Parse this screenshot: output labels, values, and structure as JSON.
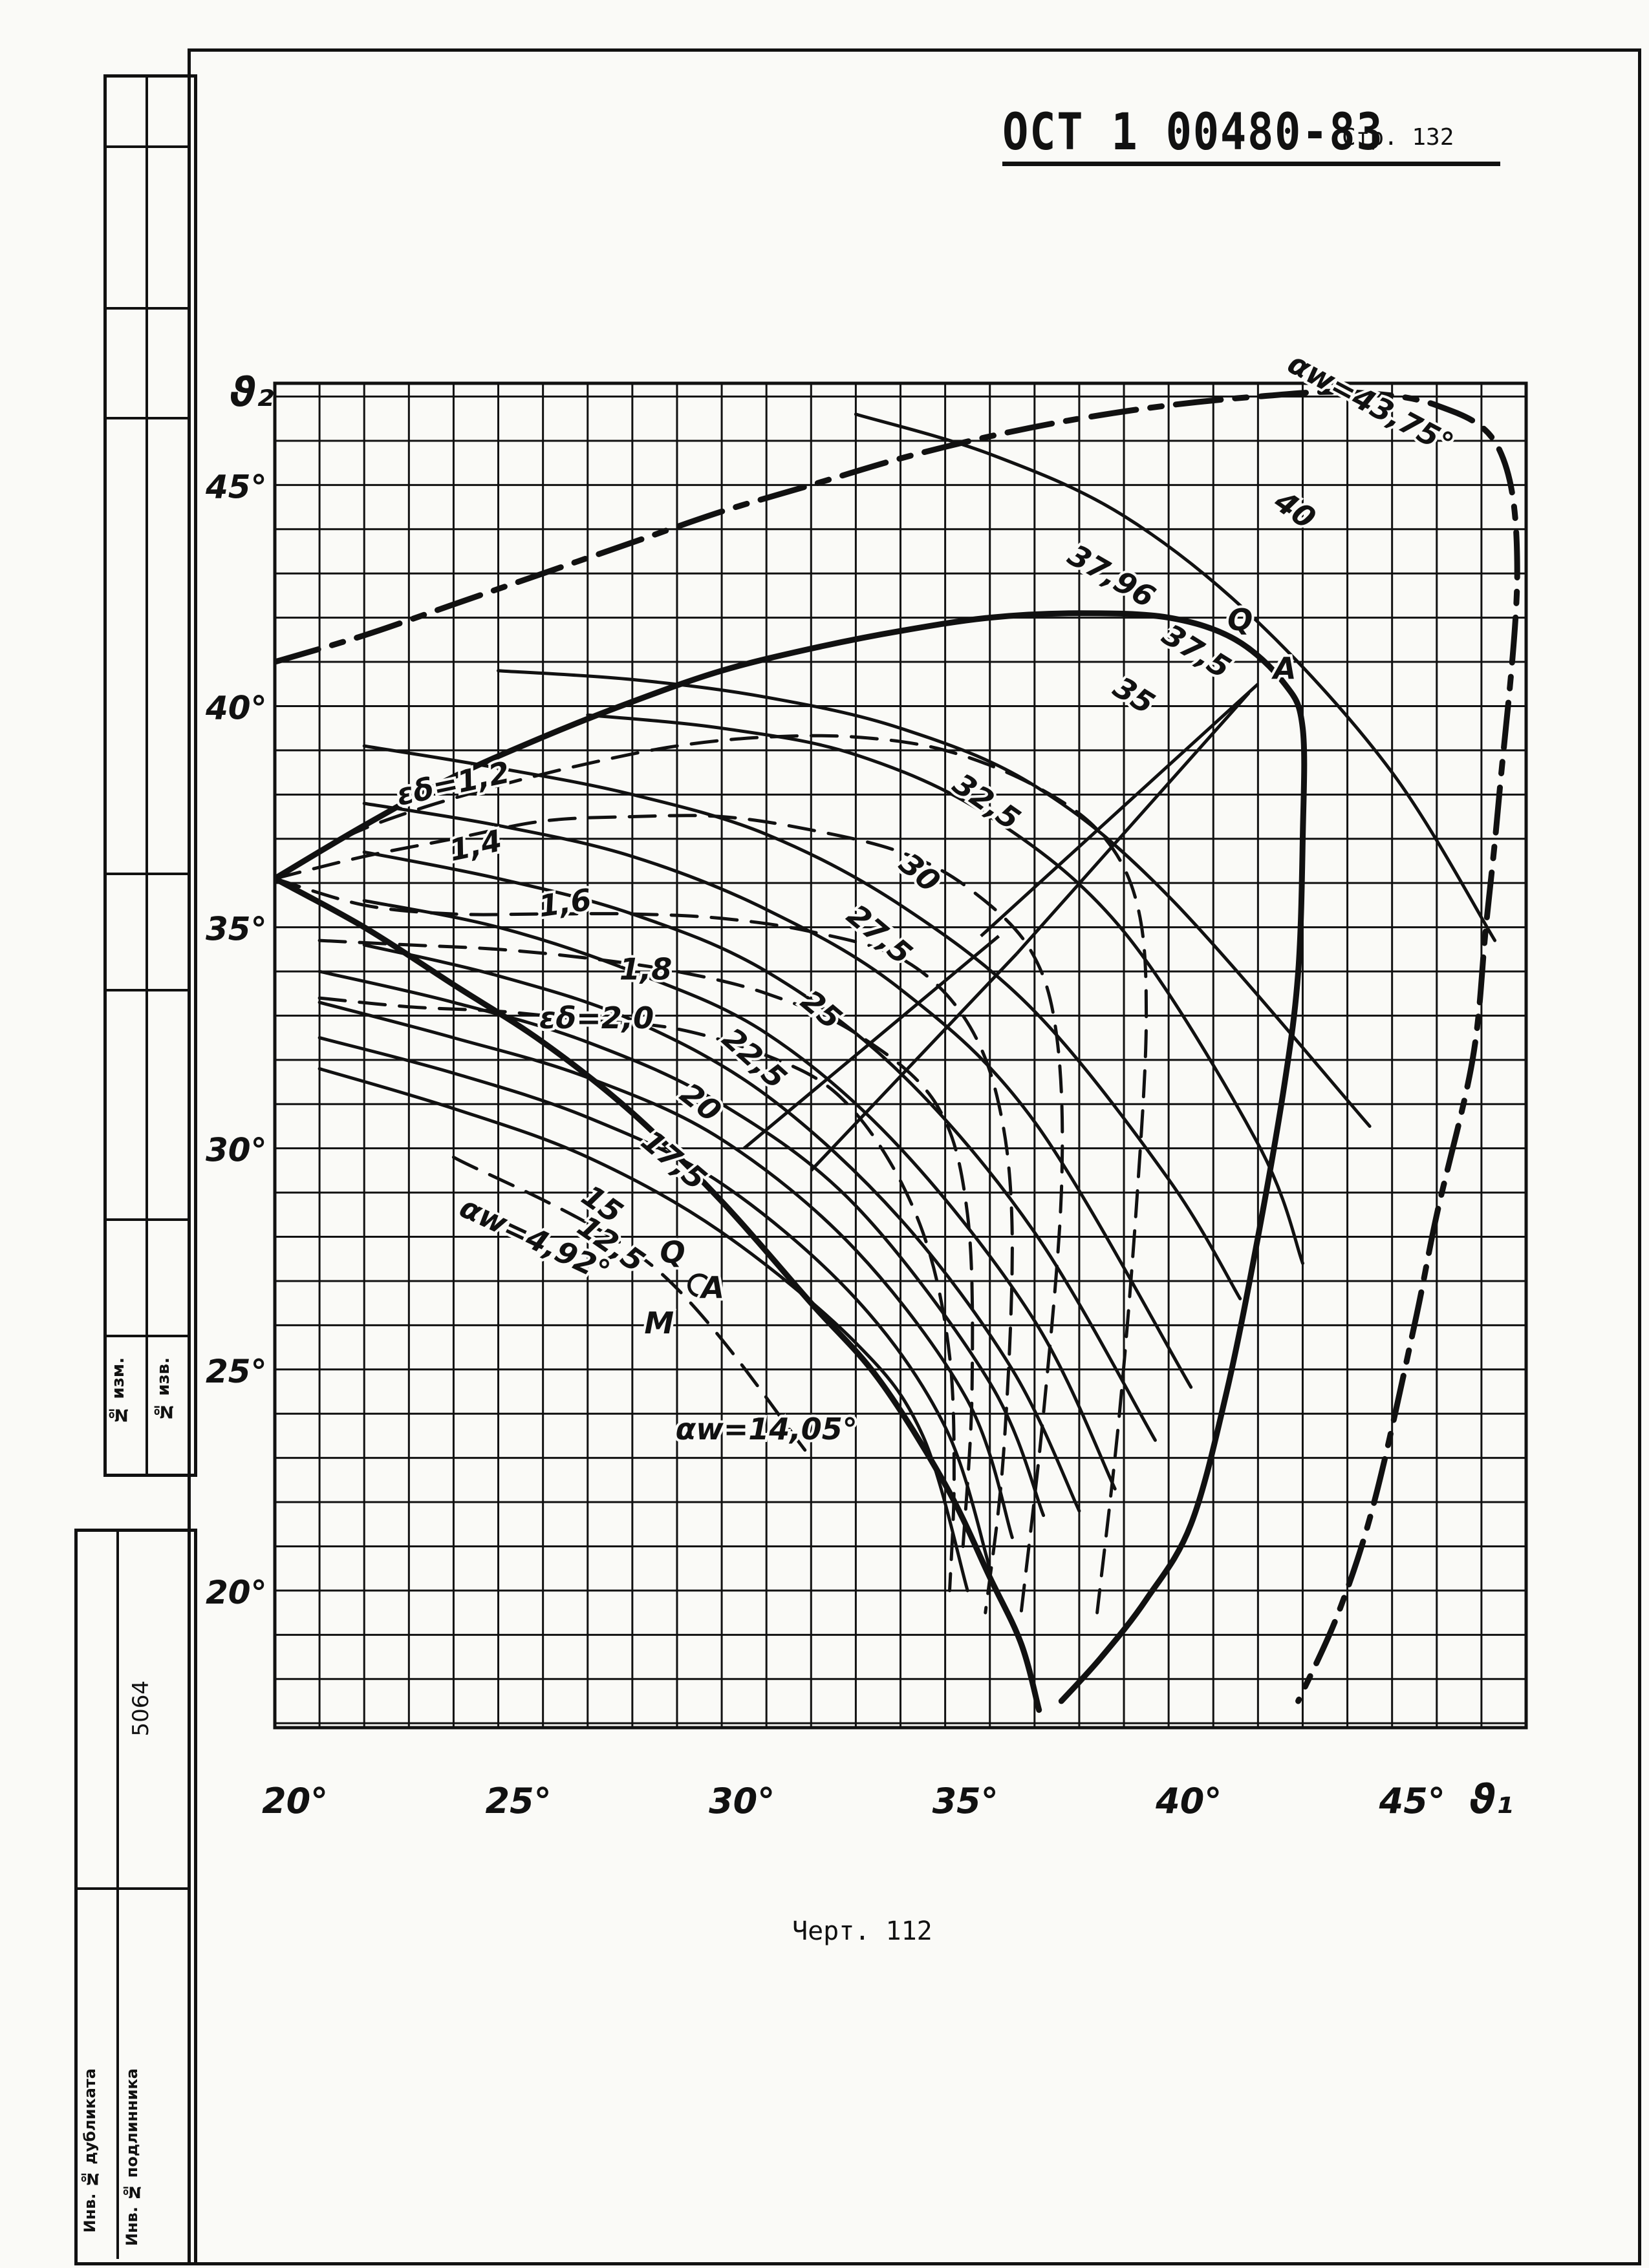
{
  "header": {
    "code": "ОСТ 1 00480-83",
    "page_label": "Стр. 132"
  },
  "caption": "Черт. 112",
  "sidebar": {
    "change_no": "№ изм.",
    "notice_no": "№ изв.",
    "number": "5064",
    "dup_inv": "Инв. № дубликата",
    "orig_inv": "Инв. № подлинника"
  },
  "chart_data": {
    "type": "line",
    "title": "",
    "xlabel": "ϑ₁",
    "ylabel": "ϑ₂",
    "xlim": [
      20,
      48
    ],
    "ylim": [
      16.9,
      47.3
    ],
    "grid": true,
    "x_ticks": [
      "20°",
      "25°",
      "30°",
      "35°",
      "40°",
      "45°"
    ],
    "x_tick_values": [
      20,
      25,
      30,
      35,
      40,
      45
    ],
    "y_ticks": [
      "20°",
      "25°",
      "30°",
      "35°",
      "40°",
      "45°"
    ],
    "y_tick_values": [
      20,
      25,
      30,
      35,
      40,
      45
    ],
    "series": [
      {
        "name": "αw=43,75°",
        "style": "heavy-dash",
        "x": [
          20,
          22,
          24,
          26,
          28,
          30,
          32,
          34,
          36,
          38,
          40,
          42,
          44,
          46,
          47.4,
          47.8,
          47.4,
          47.1,
          46.8,
          46,
          45.5,
          44.6,
          43.8,
          42.9
        ],
        "y": [
          41,
          41.6,
          42.3,
          43,
          43.7,
          44.4,
          45,
          45.6,
          46.1,
          46.5,
          46.8,
          47,
          47.1,
          46.8,
          45.8,
          43,
          38,
          35,
          32,
          28.5,
          26,
          22,
          19.5,
          17.5
        ]
      },
      {
        "name": "37,96",
        "style": "heavy",
        "x": [
          20,
          22,
          24,
          26,
          28,
          30,
          32,
          34,
          36,
          38,
          40,
          41.5,
          42.6,
          43,
          43,
          42.9,
          42.6,
          42,
          41.3,
          40.5,
          39.5,
          38.5,
          37.6
        ],
        "y": [
          36.1,
          37.3,
          38.4,
          39.3,
          40.1,
          40.8,
          41.3,
          41.7,
          42,
          42.1,
          42,
          41.5,
          40.5,
          39.5,
          37,
          34,
          31.5,
          28,
          24.5,
          21.5,
          19.8,
          18.5,
          17.5
        ]
      },
      {
        "name": "αw=14,05°",
        "style": "heavy",
        "x": [
          20,
          22,
          24,
          26,
          28,
          30,
          32,
          33.5,
          35,
          36,
          36.7,
          37.1
        ],
        "y": [
          36.1,
          35,
          33.7,
          32.4,
          30.8,
          28.8,
          26.5,
          24.8,
          22.4,
          20.3,
          18.8,
          17.3
        ]
      },
      {
        "name": "εδ=1,2",
        "style": "dash",
        "x": [
          20,
          21.5,
          23,
          25,
          27,
          29,
          31,
          33,
          35,
          37,
          38.5,
          39.3,
          39.5,
          39.3,
          38.9,
          38.4
        ],
        "y": [
          36.1,
          37,
          37.6,
          38.2,
          38.7,
          39.1,
          39.3,
          39.3,
          39,
          38.2,
          37.1,
          35.5,
          33,
          29,
          24,
          19.5
        ]
      },
      {
        "name": "1,4",
        "style": "dash",
        "x": [
          20,
          22,
          24,
          26,
          28,
          30,
          32,
          34,
          35.5,
          36.9,
          37.5,
          37.6,
          37.2,
          36.7
        ],
        "y": [
          36.1,
          36.6,
          37,
          37.4,
          37.5,
          37.5,
          37.2,
          36.7,
          35.9,
          34.5,
          32.5,
          29,
          24,
          19.5
        ]
      },
      {
        "name": "1,6",
        "style": "dash",
        "x": [
          20,
          22,
          24,
          26,
          28,
          30,
          32,
          34,
          35.4,
          36.2,
          36.5,
          36.3,
          35.9
        ],
        "y": [
          36.1,
          35.5,
          35.3,
          35.3,
          35.3,
          35.2,
          34.9,
          34.3,
          33,
          31,
          28,
          23,
          19.5
        ]
      },
      {
        "name": "1,8",
        "style": "dash",
        "x": [
          21,
          23,
          25,
          27,
          29,
          31,
          33,
          34.8,
          35.5,
          35.6,
          35.4
        ],
        "y": [
          34.7,
          34.6,
          34.5,
          34.3,
          34,
          33.5,
          32.6,
          31,
          28.5,
          24.5,
          21
        ]
      },
      {
        "name": "εδ=2,0",
        "style": "dash",
        "x": [
          21,
          23,
          25,
          27,
          29,
          31,
          32.5,
          33.7,
          34.6,
          35.1,
          35.2,
          35.1
        ],
        "y": [
          33.4,
          33.2,
          33.1,
          32.9,
          32.7,
          32.1,
          31.3,
          29.8,
          27.8,
          25.3,
          22.5,
          20
        ]
      },
      {
        "name": "12,5",
        "x": [
          21,
          24,
          27,
          30,
          33,
          34.5,
          35.5
        ],
        "y": [
          31.8,
          30.9,
          29.8,
          28.1,
          25.6,
          23.5,
          20
        ]
      },
      {
        "name": "15",
        "x": [
          21,
          24,
          27,
          30,
          33,
          35,
          36
        ],
        "y": [
          32.5,
          31.7,
          30.7,
          29.2,
          26.6,
          23.7,
          20.5
        ]
      },
      {
        "name": "17,5",
        "x": [
          21,
          24,
          27,
          30,
          33,
          35.5,
          36.5
        ],
        "y": [
          33.3,
          32.5,
          31.6,
          30.2,
          27.7,
          24.3,
          21.2
        ]
      },
      {
        "name": "20",
        "x": [
          21,
          24,
          27,
          30,
          33,
          36,
          37.2
        ],
        "y": [
          34,
          33.3,
          32.4,
          31,
          28.7,
          24.7,
          21.7
        ]
      },
      {
        "name": "22,5",
        "x": [
          22,
          25,
          28,
          31,
          34,
          36.5,
          38
        ],
        "y": [
          34.6,
          33.9,
          32.9,
          31.2,
          28.4,
          25,
          21.8
        ]
      },
      {
        "name": "25",
        "x": [
          22,
          25,
          28,
          31,
          34,
          37,
          38.8
        ],
        "y": [
          35.6,
          35,
          34,
          32.6,
          30,
          26.1,
          22.3
        ]
      },
      {
        "name": "27,5",
        "x": [
          22,
          25,
          28,
          31,
          34,
          37,
          39.7
        ],
        "y": [
          36.7,
          36.1,
          35.3,
          34,
          31.7,
          28.1,
          23.4
        ]
      },
      {
        "name": "30",
        "x": [
          22,
          25,
          28,
          31,
          34,
          37,
          40.5
        ],
        "y": [
          37.8,
          37.3,
          36.6,
          35.4,
          33.6,
          30.6,
          24.6
        ]
      },
      {
        "name": "32,5",
        "x": [
          22,
          25,
          28,
          31,
          34,
          37,
          40,
          41.6
        ],
        "y": [
          39.1,
          38.6,
          38,
          37.1,
          35.5,
          33.1,
          29.3,
          26.6
        ]
      },
      {
        "name": "35",
        "x": [
          27,
          30,
          33,
          36,
          39,
          42,
          43
        ],
        "y": [
          39.8,
          39.5,
          38.9,
          37.5,
          34.9,
          30.1,
          27.4
        ]
      },
      {
        "name": "37,5",
        "x": [
          25,
          28,
          31,
          34,
          37,
          40,
          44.5
        ],
        "y": [
          40.8,
          40.6,
          40.2,
          39.5,
          38.2,
          35.7,
          30.5
        ]
      },
      {
        "name": "40",
        "x": [
          33,
          36,
          39,
          42,
          45,
          47.3
        ],
        "y": [
          46.6,
          45.7,
          44.3,
          41.9,
          38.5,
          34.7
        ]
      },
      {
        "name": "αw=4,92°",
        "style": "dash",
        "x": [
          24,
          28.5,
          32
        ],
        "y": [
          29.8,
          27.3,
          23
        ]
      }
    ],
    "annotations": [
      "ϑ₁",
      "ϑ₂",
      "αw=43,75°",
      "αw=4,92°",
      "αw=14,05°",
      "εδ=1,2",
      "1,4",
      "1,6",
      "1,8",
      "εδ=2,0",
      "12,5",
      "15",
      "17,5",
      "20",
      "22,5",
      "25",
      "27,5",
      "30",
      "32,5",
      "35",
      "37,5",
      "37,96",
      "40",
      "Q",
      "A",
      "M"
    ],
    "label_points": [
      {
        "text": "αw=43,75°",
        "x": 44.5,
        "y": 46.8,
        "rot": 28
      },
      {
        "text": "40",
        "x": 42.8,
        "y": 44.4,
        "rot": 35
      },
      {
        "text": "37,96",
        "x": 38.7,
        "y": 42.9,
        "rot": 30
      },
      {
        "text": "Q",
        "x": 41.6,
        "y": 41.9,
        "rot": 0
      },
      {
        "text": "37,5",
        "x": 40.6,
        "y": 41.2,
        "rot": 32
      },
      {
        "text": "A",
        "x": 42.6,
        "y": 40.8,
        "rot": 0
      },
      {
        "text": "35",
        "x": 39.2,
        "y": 40.2,
        "rot": 32
      },
      {
        "text": "32,5",
        "x": 35.9,
        "y": 37.8,
        "rot": 35
      },
      {
        "text": "30",
        "x": 34.4,
        "y": 36.2,
        "rot": 40
      },
      {
        "text": "27,5",
        "x": 33.5,
        "y": 34.8,
        "rot": 40
      },
      {
        "text": "25",
        "x": 32.2,
        "y": 33.1,
        "rot": 40
      },
      {
        "text": "22,5",
        "x": 30.7,
        "y": 32.0,
        "rot": 42
      },
      {
        "text": "20",
        "x": 29.5,
        "y": 31.0,
        "rot": 38
      },
      {
        "text": "17,5",
        "x": 28.9,
        "y": 29.7,
        "rot": 40
      },
      {
        "text": "15",
        "x": 27.3,
        "y": 28.7,
        "rot": 35
      },
      {
        "text": "12,5",
        "x": 27.5,
        "y": 27.8,
        "rot": 35
      },
      {
        "text": "Q",
        "x": 28.9,
        "y": 27.6,
        "rot": 0
      },
      {
        "text": "A",
        "x": 29.8,
        "y": 26.8,
        "rot": 0
      },
      {
        "text": "εδ=1,2",
        "x": 24.0,
        "y": 38.2,
        "rot": -12
      },
      {
        "text": "1,4",
        "x": 24.5,
        "y": 36.8,
        "rot": -12
      },
      {
        "text": "1,6",
        "x": 26.5,
        "y": 35.5,
        "rot": -8
      },
      {
        "text": "1,8",
        "x": 28.3,
        "y": 34.0,
        "rot": 0
      },
      {
        "text": "εδ=2,0",
        "x": 27.2,
        "y": 32.9,
        "rot": 0
      },
      {
        "text": "αw=4,92°",
        "x": 25.8,
        "y": 27.9,
        "rot": 25
      },
      {
        "text": "M",
        "x": 28.6,
        "y": 26.0,
        "rot": 0
      },
      {
        "text": "αw=14,05°",
        "x": 31.0,
        "y": 23.6,
        "rot": 0
      }
    ],
    "markers": [
      {
        "name": "M",
        "x": 29.5,
        "y": 26.9,
        "shape": "circle"
      }
    ],
    "construction_lines": [
      {
        "x": [
          30.5,
          36.2
        ],
        "y": [
          30.0,
          34.8
        ]
      },
      {
        "x": [
          32.0,
          36.6
        ],
        "y": [
          29.5,
          34.4
        ]
      },
      {
        "x": [
          36.6,
          41.8
        ],
        "y": [
          34.4,
          40.3
        ]
      },
      {
        "x": [
          35.8,
          42.0
        ],
        "y": [
          34.8,
          40.5
        ]
      }
    ],
    "colors": {
      "ink": "#111111",
      "paper": "#fafaf7"
    }
  }
}
